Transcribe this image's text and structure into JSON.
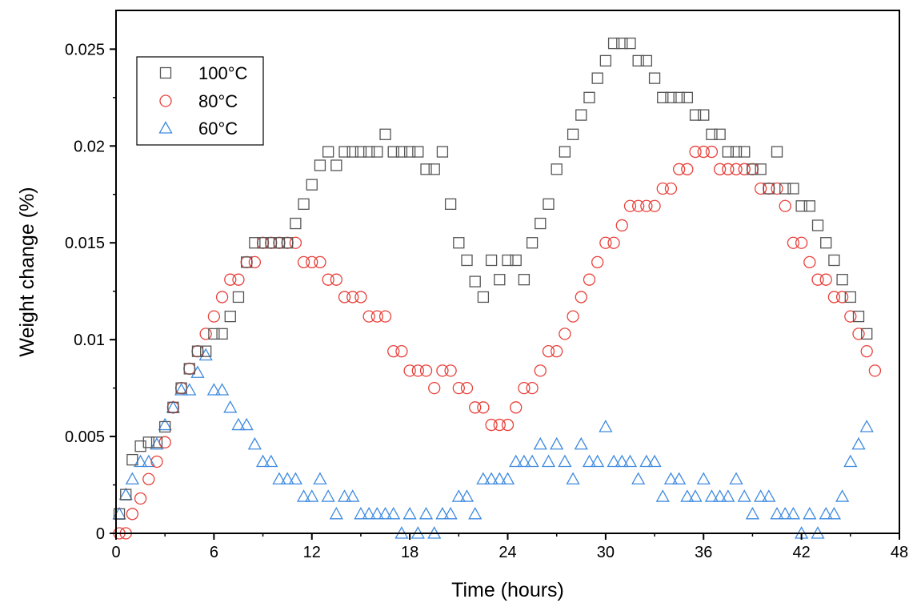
{
  "chart_data": {
    "type": "scatter",
    "title": "",
    "xlabel": "Time (hours)",
    "ylabel": "Weight change (%)",
    "xlim": [
      0,
      48
    ],
    "ylim": [
      0,
      0.027
    ],
    "xticks": [
      "0",
      "6",
      "12",
      "18",
      "24",
      "30",
      "36",
      "42",
      "48"
    ],
    "yticks": [
      "0",
      "0.005",
      "0.01",
      "0.015",
      "0.02",
      "0.025"
    ],
    "grid": false,
    "legend_position": "top-left",
    "series": [
      {
        "name": "100°C",
        "marker": "square",
        "color": "#555555",
        "x": [
          0.2,
          0.6,
          1.0,
          1.5,
          2.0,
          2.5,
          3.0,
          3.5,
          4.0,
          4.5,
          5.0,
          5.5,
          6.0,
          6.5,
          7.0,
          7.5,
          8.0,
          8.5,
          9.0,
          9.5,
          10.0,
          10.5,
          11.0,
          11.5,
          12.0,
          12.5,
          13.0,
          13.5,
          14.0,
          14.5,
          15.0,
          15.5,
          16.0,
          16.5,
          17.0,
          17.5,
          18.0,
          18.5,
          19.0,
          19.5,
          20.0,
          20.5,
          21.0,
          21.5,
          22.0,
          22.5,
          23.0,
          23.5,
          24.0,
          24.5,
          25.0,
          25.5,
          26.0,
          26.5,
          27.0,
          27.5,
          28.0,
          28.5,
          29.0,
          29.5,
          30.0,
          30.5,
          31.0,
          31.5,
          32.0,
          32.5,
          33.0,
          33.5,
          34.0,
          34.5,
          35.0,
          35.5,
          36.0,
          36.5,
          37.0,
          37.5,
          38.0,
          38.5,
          39.0,
          39.5,
          40.0,
          40.5,
          41.0,
          41.5,
          42.0,
          42.5,
          43.0,
          43.5,
          44.0,
          44.5,
          45.0,
          45.5,
          46.0
        ],
        "y": [
          0.001,
          0.002,
          0.0038,
          0.0045,
          0.0047,
          0.0047,
          0.0055,
          0.0065,
          0.0075,
          0.0085,
          0.0094,
          0.0094,
          0.0103,
          0.0103,
          0.0112,
          0.0122,
          0.014,
          0.015,
          0.015,
          0.015,
          0.015,
          0.015,
          0.016,
          0.017,
          0.018,
          0.019,
          0.0197,
          0.019,
          0.0197,
          0.0197,
          0.0197,
          0.0197,
          0.0197,
          0.0206,
          0.0197,
          0.0197,
          0.0197,
          0.0197,
          0.0188,
          0.0188,
          0.0197,
          0.017,
          0.015,
          0.0141,
          0.013,
          0.0122,
          0.0141,
          0.0131,
          0.0141,
          0.0141,
          0.0131,
          0.015,
          0.016,
          0.017,
          0.0188,
          0.0197,
          0.0206,
          0.0216,
          0.0225,
          0.0235,
          0.0244,
          0.0253,
          0.0253,
          0.0253,
          0.0244,
          0.0244,
          0.0235,
          0.0225,
          0.0225,
          0.0225,
          0.0225,
          0.0216,
          0.0216,
          0.0206,
          0.0206,
          0.0197,
          0.0197,
          0.0197,
          0.0188,
          0.0188,
          0.0178,
          0.0197,
          0.0178,
          0.0178,
          0.0169,
          0.0169,
          0.0159,
          0.015,
          0.0141,
          0.0131,
          0.0122,
          0.0112,
          0.0103
        ]
      },
      {
        "name": "80°C",
        "marker": "circle",
        "color": "#e8413b",
        "x": [
          0.2,
          0.6,
          1.0,
          1.5,
          2.0,
          2.5,
          3.0,
          3.5,
          4.0,
          4.5,
          5.0,
          5.5,
          6.0,
          6.5,
          7.0,
          7.5,
          8.0,
          8.5,
          9.0,
          9.5,
          10.0,
          10.5,
          11.0,
          11.5,
          12.0,
          12.5,
          13.0,
          13.5,
          14.0,
          14.5,
          15.0,
          15.5,
          16.0,
          16.5,
          17.0,
          17.5,
          18.0,
          18.5,
          19.0,
          19.5,
          20.0,
          20.5,
          21.0,
          21.5,
          22.0,
          22.5,
          23.0,
          23.5,
          24.0,
          24.5,
          25.0,
          25.5,
          26.0,
          26.5,
          27.0,
          27.5,
          28.0,
          28.5,
          29.0,
          29.5,
          30.0,
          30.5,
          31.0,
          31.5,
          32.0,
          32.5,
          33.0,
          33.5,
          34.0,
          34.5,
          35.0,
          35.5,
          36.0,
          36.5,
          37.0,
          37.5,
          38.0,
          38.5,
          39.0,
          39.5,
          40.0,
          40.5,
          41.0,
          41.5,
          42.0,
          42.5,
          43.0,
          43.5,
          44.0,
          44.5,
          45.0,
          45.5,
          46.0,
          46.5
        ],
        "y": [
          0.0,
          0.0,
          0.001,
          0.0018,
          0.0028,
          0.0037,
          0.0047,
          0.0065,
          0.0075,
          0.0085,
          0.0094,
          0.0103,
          0.0112,
          0.0122,
          0.0131,
          0.0131,
          0.014,
          0.014,
          0.015,
          0.015,
          0.015,
          0.015,
          0.015,
          0.014,
          0.014,
          0.014,
          0.0131,
          0.0131,
          0.0122,
          0.0122,
          0.0122,
          0.0112,
          0.0112,
          0.0112,
          0.0094,
          0.0094,
          0.0084,
          0.0084,
          0.0084,
          0.0075,
          0.0084,
          0.0084,
          0.0075,
          0.0075,
          0.0065,
          0.0065,
          0.0056,
          0.0056,
          0.0056,
          0.0065,
          0.0075,
          0.0075,
          0.0084,
          0.0094,
          0.0094,
          0.0103,
          0.0112,
          0.0122,
          0.0131,
          0.014,
          0.015,
          0.015,
          0.0159,
          0.0169,
          0.0169,
          0.0169,
          0.0169,
          0.0178,
          0.0178,
          0.0188,
          0.0188,
          0.0197,
          0.0197,
          0.0197,
          0.0188,
          0.0188,
          0.0188,
          0.0188,
          0.0188,
          0.0178,
          0.0178,
          0.0178,
          0.0169,
          0.015,
          0.015,
          0.014,
          0.0131,
          0.0131,
          0.0122,
          0.0122,
          0.0112,
          0.0103,
          0.0094,
          0.0084
        ]
      },
      {
        "name": "60°C",
        "marker": "triangle",
        "color": "#3f8be0",
        "x": [
          0.2,
          0.6,
          1.0,
          1.5,
          2.0,
          2.5,
          3.0,
          3.5,
          4.0,
          4.5,
          5.0,
          5.5,
          6.0,
          6.5,
          7.0,
          7.5,
          8.0,
          8.5,
          9.0,
          9.5,
          10.0,
          10.5,
          11.0,
          11.5,
          12.0,
          12.5,
          13.0,
          13.5,
          14.0,
          14.5,
          15.0,
          15.5,
          16.0,
          16.5,
          17.0,
          17.5,
          18.0,
          18.5,
          19.0,
          19.5,
          20.0,
          20.5,
          21.0,
          21.5,
          22.0,
          22.5,
          23.0,
          23.5,
          24.0,
          24.5,
          25.0,
          25.5,
          26.0,
          26.5,
          27.0,
          27.5,
          28.0,
          28.5,
          29.0,
          29.5,
          30.0,
          30.5,
          31.0,
          31.5,
          32.0,
          32.5,
          33.0,
          33.5,
          34.0,
          34.5,
          35.0,
          35.5,
          36.0,
          36.5,
          37.0,
          37.5,
          38.0,
          38.5,
          39.0,
          39.5,
          40.0,
          40.5,
          41.0,
          41.5,
          42.0,
          42.5,
          43.0,
          43.5,
          44.0,
          44.5,
          45.0,
          45.5,
          46.0
        ],
        "y": [
          0.001,
          0.002,
          0.0028,
          0.0037,
          0.0037,
          0.0046,
          0.0056,
          0.0065,
          0.0074,
          0.0074,
          0.0083,
          0.0092,
          0.0074,
          0.0074,
          0.0065,
          0.0056,
          0.0056,
          0.0046,
          0.0037,
          0.0037,
          0.0028,
          0.0028,
          0.0028,
          0.0019,
          0.0019,
          0.0028,
          0.0019,
          0.001,
          0.0019,
          0.0019,
          0.001,
          0.001,
          0.001,
          0.001,
          0.001,
          0.0,
          0.001,
          0.0,
          0.001,
          0.0,
          0.001,
          0.001,
          0.0019,
          0.0019,
          0.001,
          0.0028,
          0.0028,
          0.0028,
          0.0028,
          0.0037,
          0.0037,
          0.0037,
          0.0046,
          0.0037,
          0.0046,
          0.0037,
          0.0028,
          0.0046,
          0.0037,
          0.0037,
          0.0055,
          0.0037,
          0.0037,
          0.0037,
          0.0028,
          0.0037,
          0.0037,
          0.0019,
          0.0028,
          0.0028,
          0.0019,
          0.0019,
          0.0028,
          0.0019,
          0.0019,
          0.0019,
          0.0028,
          0.0019,
          0.001,
          0.0019,
          0.0019,
          0.001,
          0.001,
          0.001,
          0.0,
          0.001,
          0.0,
          0.001,
          0.001,
          0.0019,
          0.0037,
          0.0046,
          0.0055
        ]
      }
    ]
  }
}
